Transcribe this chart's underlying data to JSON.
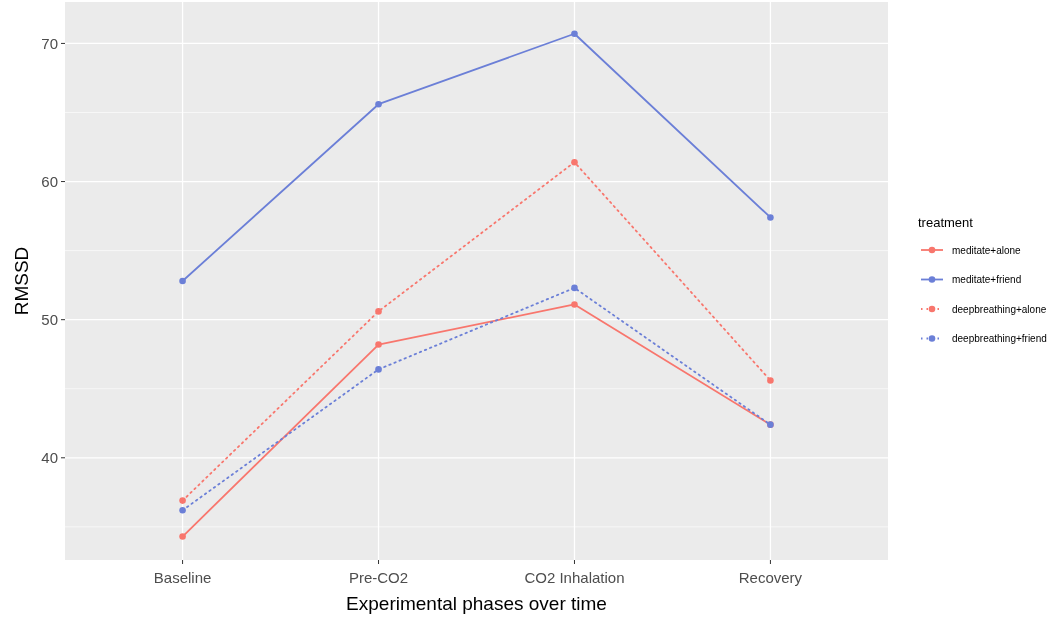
{
  "chart_data": {
    "type": "line",
    "xlabel": "Experimental phases over time",
    "ylabel": "RMSSD",
    "legend_title": "treatment",
    "categories": [
      "Baseline",
      "Pre-CO2",
      "CO2 Inhalation",
      "Recovery"
    ],
    "ylim": [
      32.6,
      73
    ],
    "yticks": [
      40,
      50,
      60,
      70
    ],
    "grid": true,
    "legend": "right",
    "marker": "circle",
    "series": [
      {
        "name": "meditate+alone",
        "color": "#f8766d",
        "line_style": "solid",
        "values": [
          34.3,
          48.2,
          51.1,
          42.4
        ]
      },
      {
        "name": "meditate+friend",
        "color": "#6b7fd7",
        "line_style": "solid",
        "values": [
          52.8,
          65.6,
          70.7,
          57.4
        ]
      },
      {
        "name": "deepbreathing+alone",
        "color": "#f8766d",
        "line_style": "dotted",
        "values": [
          36.9,
          50.6,
          61.4,
          45.6
        ]
      },
      {
        "name": "deepbreathing+friend",
        "color": "#6b7fd7",
        "line_style": "dotted",
        "values": [
          36.2,
          46.4,
          52.3,
          42.4
        ]
      }
    ]
  }
}
